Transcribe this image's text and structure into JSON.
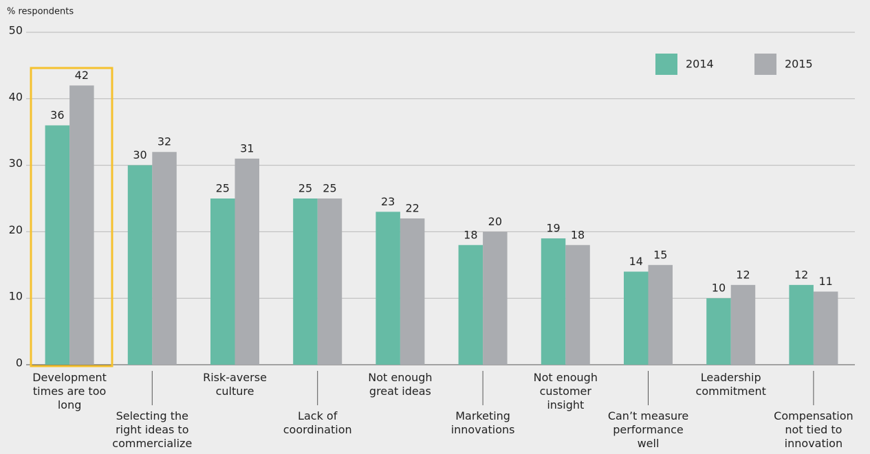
{
  "chart_data": {
    "type": "bar",
    "y_label": "% respondents",
    "categories": [
      "Development\ntimes are too\nlong",
      "Selecting the\nright ideas to\ncommercialize",
      "Risk-averse\nculture",
      "Lack of\ncoordination",
      "Not enough\ngreat ideas",
      "Marketing\ninnovations",
      "Not enough\ncustomer\ninsight",
      "Can’t measure\nperformance\nwell",
      "Leadership\ncommitment",
      "Compensation\nnot tied to\ninnovation"
    ],
    "series": [
      {
        "name": "2014",
        "color": "#66bba5",
        "values": [
          36,
          30,
          25,
          25,
          23,
          18,
          19,
          14,
          10,
          12
        ]
      },
      {
        "name": "2015",
        "color": "#aaacb0",
        "values": [
          42,
          32,
          31,
          25,
          22,
          20,
          18,
          15,
          12,
          11
        ]
      }
    ],
    "ylim": [
      0,
      50
    ],
    "yticks": [
      0,
      10,
      20,
      30,
      40,
      50
    ],
    "grid": true,
    "legend": "top-right"
  }
}
